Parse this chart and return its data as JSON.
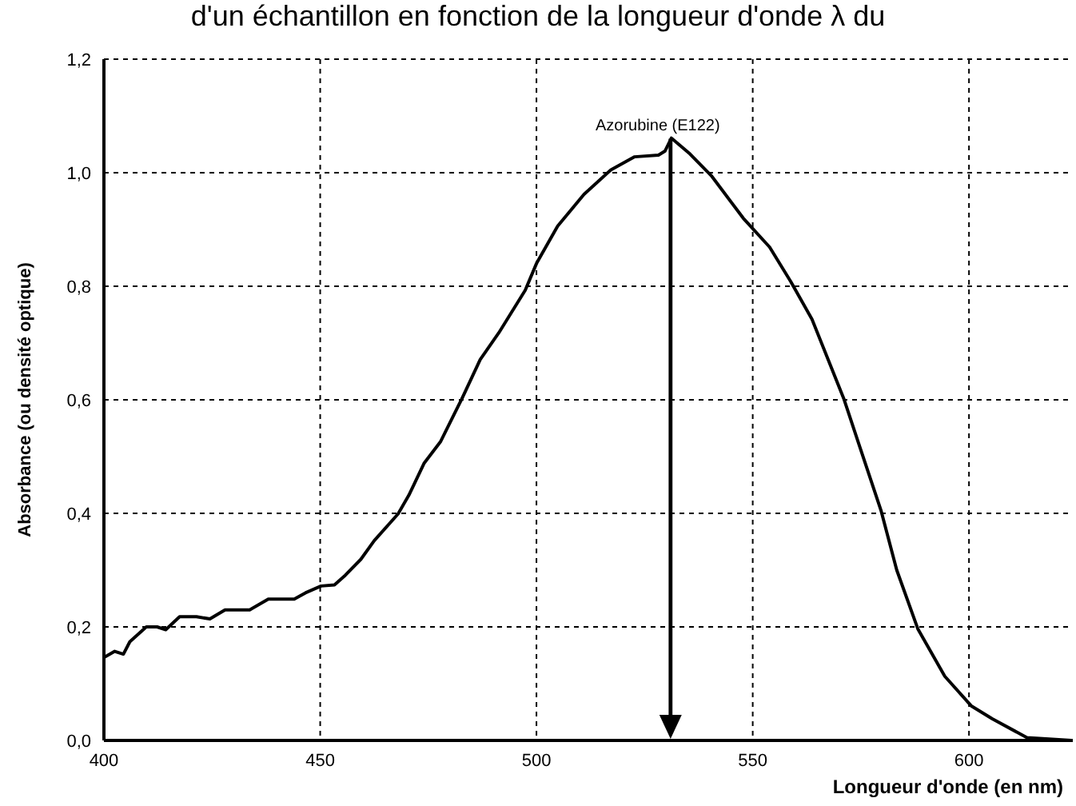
{
  "chart_data": {
    "type": "line",
    "title": "d'un échantillon en fonction de la longueur d'onde λ du",
    "xlabel": "Longueur d'onde (en nm)",
    "ylabel": "Absorbance (ou densité optique)",
    "annotations": [
      {
        "text": "Azorubine (E122)",
        "x": 531,
        "y": 1.06
      }
    ],
    "xlim": [
      400,
      624
    ],
    "xticks": [
      400,
      450,
      500,
      550,
      600
    ],
    "ylim": [
      0,
      1.2
    ],
    "yticks": [
      {
        "value": 0,
        "label": "0,0"
      },
      {
        "value": 0.2,
        "label": "0,2"
      },
      {
        "value": 0.4,
        "label": "0,4"
      },
      {
        "value": 0.6,
        "label": "0,6"
      },
      {
        "value": 0.8,
        "label": "0,8"
      },
      {
        "value": 1.0,
        "label": "1,0"
      },
      {
        "value": 1.2,
        "label": "1,2"
      }
    ],
    "grid": true,
    "marker": "none",
    "line_style": "solid",
    "legend": false,
    "series": [
      {
        "color": "#000000",
        "x": [
          400,
          402.5,
          404.5,
          406,
          409.8,
          412.3,
          414.3,
          417.5,
          421.4,
          424.5,
          428,
          433.7,
          438,
          444,
          446.6,
          450.2,
          453.3,
          455.8,
          459.4,
          462.5,
          468,
          470.5,
          474,
          477.8,
          482.7,
          487,
          491.3,
          497.4,
          500,
          504.9,
          511,
          517.2,
          522.7,
          528.2,
          529.7,
          531.2,
          535.5,
          540.4,
          547.8,
          553.9,
          558.8,
          563.7,
          571.1,
          574.8,
          579.7,
          583.3,
          588.2,
          594.4,
          600.5,
          605.4,
          613.4,
          623.7
        ],
        "values": [
          0.146,
          0.157,
          0.152,
          0.174,
          0.2,
          0.2,
          0.195,
          0.218,
          0.218,
          0.214,
          0.23,
          0.23,
          0.249,
          0.249,
          0.26,
          0.272,
          0.274,
          0.291,
          0.319,
          0.352,
          0.399,
          0.432,
          0.488,
          0.526,
          0.601,
          0.671,
          0.718,
          0.793,
          0.84,
          0.906,
          0.962,
          1.005,
          1.028,
          1.031,
          1.038,
          1.061,
          1.033,
          0.995,
          0.92,
          0.869,
          0.808,
          0.742,
          0.601,
          0.516,
          0.404,
          0.3,
          0.196,
          0.113,
          0.061,
          0.038,
          0.005,
          0.0
        ]
      }
    ]
  }
}
